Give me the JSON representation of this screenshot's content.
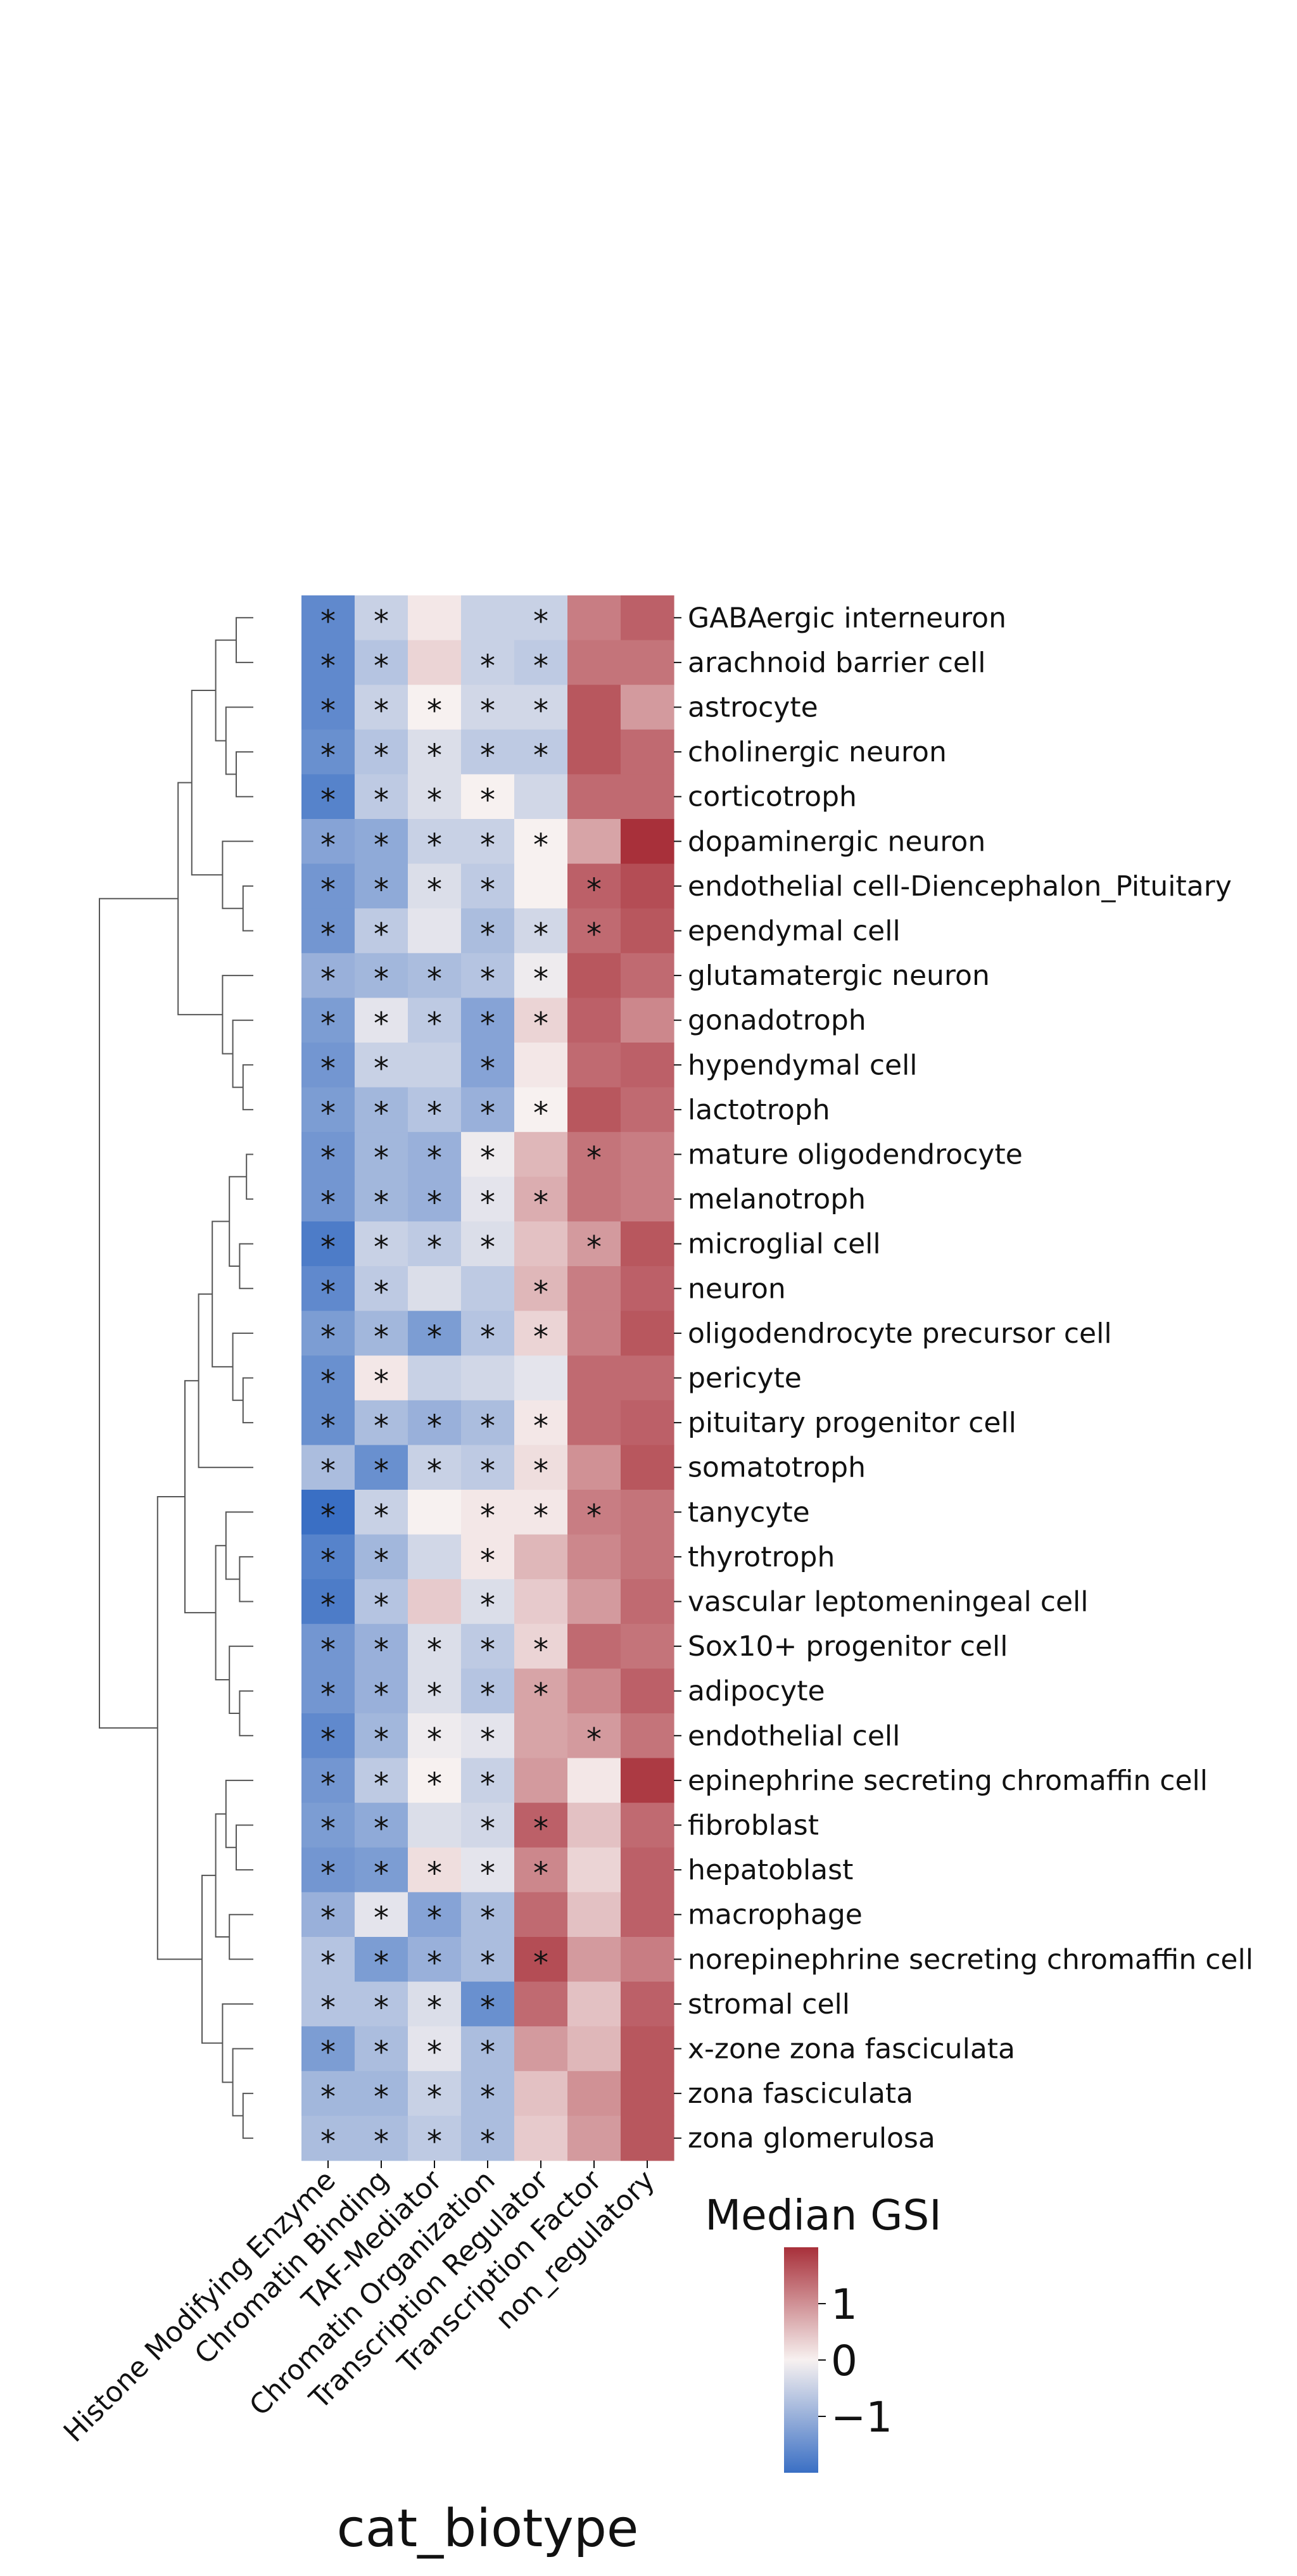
{
  "chart_data": {
    "type": "heatmap",
    "title": "",
    "xlabel": "cat_biotype",
    "ylabel": "",
    "columns": [
      "Histone Modifying Enzyme",
      "Chromatin Binding",
      "TAF-Mediator",
      "Chromatin Organization",
      "Transcription Regulator",
      "Transcription Factor",
      "non_regulatory"
    ],
    "rows": [
      "GABAergic interneuron",
      "arachnoid barrier cell",
      "astrocyte",
      "cholinergic neuron",
      "corticotroph",
      "dopaminergic neuron",
      "endothelial cell-Diencephalon_Pituitary",
      "ependymal cell",
      "glutamatergic neuron",
      "gonadotroph",
      "hypendymal cell",
      "lactotroph",
      "mature oligodendrocyte",
      "melanotroph",
      "microglial cell",
      "neuron",
      "oligodendrocyte precursor cell",
      "pericyte",
      "pituitary progenitor cell",
      "somatotroph",
      "tanycyte",
      "thyrotroph",
      "vascular leptomeningeal cell",
      "Sox10+ progenitor cell",
      "adipocyte",
      "endothelial cell",
      "epinephrine secreting chromaffin cell",
      "fibroblast",
      "hepatoblast",
      "macrophage",
      "norepinephrine secreting chromaffin cell",
      "stromal cell",
      "x-zone zona fasciculata",
      "zona fasciculata",
      "zona glomerulosa"
    ],
    "values": [
      [
        -1.6,
        -0.5,
        0.1,
        -0.5,
        -0.5,
        1.2,
        1.5
      ],
      [
        -1.6,
        -0.7,
        0.3,
        -0.5,
        -0.6,
        1.3,
        1.3
      ],
      [
        -1.6,
        -0.5,
        0.0,
        -0.4,
        -0.4,
        1.6,
        0.9
      ],
      [
        -1.5,
        -0.7,
        -0.3,
        -0.6,
        -0.6,
        1.6,
        1.4
      ],
      [
        -1.7,
        -0.6,
        -0.3,
        0.0,
        -0.4,
        1.4,
        1.4
      ],
      [
        -1.2,
        -1.1,
        -0.5,
        -0.5,
        0.0,
        0.8,
        2.0
      ],
      [
        -1.4,
        -1.1,
        -0.3,
        -0.6,
        0.0,
        1.5,
        1.7
      ],
      [
        -1.4,
        -0.6,
        -0.2,
        -0.8,
        -0.4,
        1.4,
        1.6
      ],
      [
        -1.0,
        -0.9,
        -0.8,
        -0.7,
        -0.1,
        1.6,
        1.4
      ],
      [
        -1.3,
        -0.2,
        -0.6,
        -1.2,
        0.3,
        1.5,
        1.1
      ],
      [
        -1.4,
        -0.5,
        -0.5,
        -1.2,
        0.1,
        1.4,
        1.5
      ],
      [
        -1.3,
        -0.9,
        -0.7,
        -1.0,
        0.0,
        1.6,
        1.4
      ],
      [
        -1.4,
        -0.9,
        -1.0,
        -0.1,
        0.6,
        1.3,
        1.2
      ],
      [
        -1.4,
        -0.9,
        -1.0,
        -0.2,
        0.7,
        1.3,
        1.2
      ],
      [
        -1.8,
        -0.5,
        -0.6,
        -0.3,
        0.5,
        0.9,
        1.6
      ],
      [
        -1.6,
        -0.6,
        -0.3,
        -0.6,
        0.6,
        1.2,
        1.5
      ],
      [
        -1.3,
        -0.9,
        -1.3,
        -0.7,
        0.3,
        1.2,
        1.6
      ],
      [
        -1.5,
        0.1,
        -0.5,
        -0.4,
        -0.2,
        1.4,
        1.4
      ],
      [
        -1.5,
        -0.8,
        -1.0,
        -0.8,
        0.1,
        1.4,
        1.5
      ],
      [
        -0.8,
        -1.5,
        -0.5,
        -0.6,
        0.2,
        1.0,
        1.6
      ],
      [
        -2.0,
        -0.5,
        0.0,
        0.1,
        0.1,
        1.2,
        1.3
      ],
      [
        -1.7,
        -0.9,
        -0.4,
        0.1,
        0.6,
        1.1,
        1.3
      ],
      [
        -1.8,
        -0.7,
        0.4,
        -0.3,
        0.4,
        0.9,
        1.4
      ],
      [
        -1.4,
        -1.0,
        -0.3,
        -0.6,
        0.3,
        1.4,
        1.3
      ],
      [
        -1.4,
        -1.0,
        -0.3,
        -0.7,
        0.8,
        1.1,
        1.5
      ],
      [
        -1.6,
        -0.9,
        -0.1,
        -0.2,
        0.8,
        0.9,
        1.3
      ],
      [
        -1.4,
        -0.6,
        0.0,
        -0.5,
        0.9,
        0.1,
        1.9
      ],
      [
        -1.3,
        -1.1,
        -0.3,
        -0.4,
        1.5,
        0.5,
        1.4
      ],
      [
        -1.4,
        -1.3,
        0.2,
        -0.2,
        1.1,
        0.3,
        1.5
      ],
      [
        -1.0,
        -0.2,
        -1.2,
        -0.8,
        1.4,
        0.5,
        1.5
      ],
      [
        -0.7,
        -1.3,
        -1.0,
        -0.8,
        1.7,
        0.9,
        1.2
      ],
      [
        -0.7,
        -0.7,
        -0.3,
        -1.5,
        1.4,
        0.5,
        1.5
      ],
      [
        -1.3,
        -0.8,
        -0.2,
        -0.8,
        0.9,
        0.6,
        1.6
      ],
      [
        -0.9,
        -0.9,
        -0.5,
        -0.8,
        0.5,
        1.0,
        1.6
      ],
      [
        -0.8,
        -0.8,
        -0.6,
        -0.8,
        0.4,
        0.9,
        1.6
      ]
    ],
    "significant": [
      [
        1,
        1,
        0,
        0,
        1,
        0,
        0
      ],
      [
        1,
        1,
        0,
        1,
        1,
        0,
        0
      ],
      [
        1,
        1,
        1,
        1,
        1,
        0,
        0
      ],
      [
        1,
        1,
        1,
        1,
        1,
        0,
        0
      ],
      [
        1,
        1,
        1,
        1,
        0,
        0,
        0
      ],
      [
        1,
        1,
        1,
        1,
        1,
        0,
        0
      ],
      [
        1,
        1,
        1,
        1,
        0,
        1,
        0
      ],
      [
        1,
        1,
        0,
        1,
        1,
        1,
        0
      ],
      [
        1,
        1,
        1,
        1,
        1,
        0,
        0
      ],
      [
        1,
        1,
        1,
        1,
        1,
        0,
        0
      ],
      [
        1,
        1,
        0,
        1,
        0,
        0,
        0
      ],
      [
        1,
        1,
        1,
        1,
        1,
        0,
        0
      ],
      [
        1,
        1,
        1,
        1,
        0,
        1,
        0
      ],
      [
        1,
        1,
        1,
        1,
        1,
        0,
        0
      ],
      [
        1,
        1,
        1,
        1,
        0,
        1,
        0
      ],
      [
        1,
        1,
        0,
        0,
        1,
        0,
        0
      ],
      [
        1,
        1,
        1,
        1,
        1,
        0,
        0
      ],
      [
        1,
        1,
        0,
        0,
        0,
        0,
        0
      ],
      [
        1,
        1,
        1,
        1,
        1,
        0,
        0
      ],
      [
        1,
        1,
        1,
        1,
        1,
        0,
        0
      ],
      [
        1,
        1,
        0,
        1,
        1,
        1,
        0
      ],
      [
        1,
        1,
        0,
        1,
        0,
        0,
        0
      ],
      [
        1,
        1,
        0,
        1,
        0,
        0,
        0
      ],
      [
        1,
        1,
        1,
        1,
        1,
        0,
        0
      ],
      [
        1,
        1,
        1,
        1,
        1,
        0,
        0
      ],
      [
        1,
        1,
        1,
        1,
        0,
        1,
        0
      ],
      [
        1,
        1,
        1,
        1,
        0,
        0,
        0
      ],
      [
        1,
        1,
        0,
        1,
        1,
        0,
        0
      ],
      [
        1,
        1,
        1,
        1,
        1,
        0,
        0
      ],
      [
        1,
        1,
        1,
        1,
        0,
        0,
        0
      ],
      [
        1,
        1,
        1,
        1,
        1,
        0,
        0
      ],
      [
        1,
        1,
        1,
        1,
        0,
        0,
        0
      ],
      [
        1,
        1,
        1,
        1,
        0,
        0,
        0
      ],
      [
        1,
        1,
        1,
        1,
        0,
        0,
        0
      ],
      [
        1,
        1,
        1,
        1,
        0,
        0,
        0
      ]
    ],
    "significance_marker": "*",
    "colorbar": {
      "title": "Median GSI",
      "ticks": [
        1,
        0,
        -1
      ],
      "tick_labels": [
        "1",
        "0",
        "−1"
      ],
      "range": [
        -2.0,
        2.0
      ],
      "colormap": "vlag",
      "low_color": "#3a6fc4",
      "mid_color": "#f7f1f0",
      "high_color": "#a8303a"
    },
    "row_dendrogram": true
  }
}
